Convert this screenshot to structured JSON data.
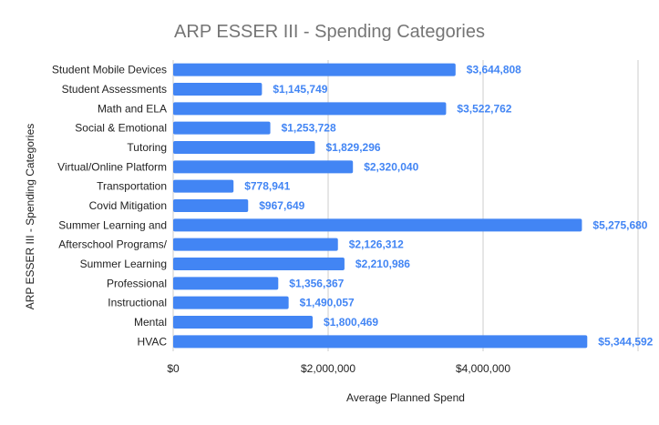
{
  "chart_data": {
    "type": "bar",
    "orientation": "horizontal",
    "title": "ARP ESSER III - Spending Categories",
    "xlabel": "Average Planned Spend",
    "ylabel": "ARP ESSER III - Spending Categories",
    "categories": [
      "Student Mobile Devices",
      "Student Assessments",
      "Math and ELA",
      "Social & Emotional",
      "Tutoring",
      "Virtual/Online Platform",
      "Transportation",
      "Covid Mitigation",
      "Summer Learning and",
      "Afterschool Programs/",
      "Summer Learning",
      "Professional",
      "Instructional",
      "Mental",
      "HVAC"
    ],
    "values": [
      3644808,
      1145749,
      3522762,
      1253728,
      1829296,
      2320040,
      778941,
      967649,
      5275680,
      2126312,
      2210986,
      1356367,
      1490057,
      1800469,
      5344592
    ],
    "value_labels": [
      "$3,644,808",
      "$1,145,749",
      "$3,522,762",
      "$1,253,728",
      "$1,829,296",
      "$2,320,040",
      "$778,941",
      "$967,649",
      "$5,275,680",
      "$2,126,312",
      "$2,210,986",
      "$1,356,367",
      "$1,490,057",
      "$1,800,469",
      "$5,344,592"
    ],
    "xlim": [
      0,
      6000000
    ],
    "x_ticks": [
      {
        "value": 0,
        "label": "$0"
      },
      {
        "value": 2000000,
        "label": "$2,000,000"
      },
      {
        "value": 4000000,
        "label": "$4,000,000"
      },
      {
        "value": 6000000,
        "label": ""
      }
    ],
    "grid": true,
    "legend": "none",
    "bar_color": "#4285f4",
    "label_color": "#4285f4",
    "title_color": "#757575"
  }
}
